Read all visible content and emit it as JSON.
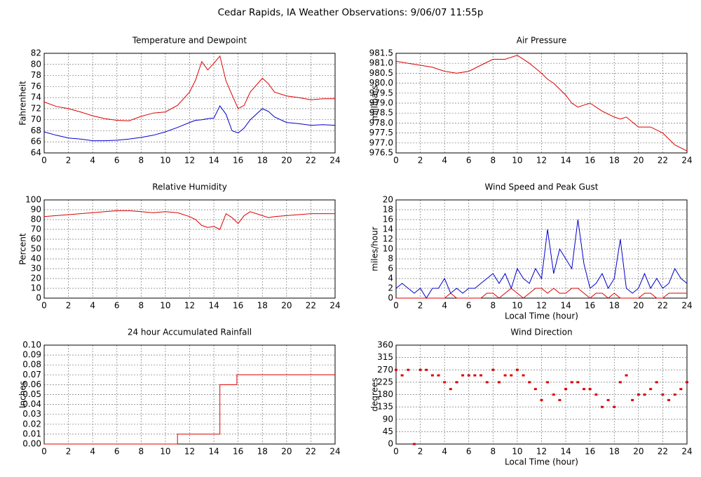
{
  "title": "Cedar Rapids, IA Weather Observations: 9/06/07 11:55p",
  "chart_data": [
    {
      "type": "line",
      "title": "Temperature and Dewpoint",
      "y_label": "Fahrenheit",
      "x": [
        0,
        1,
        2,
        3,
        4,
        5,
        6,
        7,
        8,
        9,
        10,
        11,
        12,
        12.5,
        13,
        13.5,
        14,
        14.5,
        15,
        15.5,
        16,
        16.5,
        17,
        18,
        18.5,
        19,
        20,
        21,
        22,
        23,
        24
      ],
      "series": [
        {
          "color": "#dd0000",
          "values": [
            73.2,
            72.4,
            72,
            71.4,
            70.7,
            70.2,
            69.9,
            69.8,
            70.6,
            71.2,
            71.4,
            72.6,
            75,
            77.2,
            80.5,
            79,
            80.2,
            81.5,
            77,
            74.5,
            72,
            72.6,
            75,
            77.5,
            76.5,
            75,
            74.3,
            74,
            73.6,
            73.8,
            73.8
          ]
        },
        {
          "color": "#0000cc",
          "values": [
            67.8,
            67.2,
            66.7,
            66.5,
            66.2,
            66.2,
            66.3,
            66.5,
            66.8,
            67.2,
            67.8,
            68.6,
            69.5,
            69.9,
            70,
            70.2,
            70.3,
            72.5,
            71,
            68,
            67.6,
            68.5,
            70,
            72,
            71.5,
            70.5,
            69.5,
            69.3,
            69,
            69.1,
            69
          ]
        }
      ],
      "xlim": [
        0,
        24
      ],
      "xticks": [
        0,
        2,
        4,
        6,
        8,
        10,
        12,
        14,
        16,
        18,
        20,
        22,
        24
      ],
      "ylim": [
        64,
        82
      ],
      "yticks": [
        64,
        66,
        68,
        70,
        72,
        74,
        76,
        78,
        80,
        82
      ],
      "grid": true
    },
    {
      "type": "line",
      "title": "Air Pressure",
      "y_label": "millibars",
      "x": [
        0,
        1,
        2,
        3,
        4,
        5,
        6,
        7,
        8,
        9,
        10,
        11,
        12,
        12.5,
        13,
        13.5,
        14,
        14.5,
        15,
        15.5,
        16,
        16.5,
        17,
        18,
        18.5,
        19,
        20,
        21,
        22,
        23,
        24
      ],
      "series": [
        {
          "color": "#dd0000",
          "values": [
            981.1,
            981.0,
            980.9,
            980.8,
            980.6,
            980.5,
            980.6,
            980.9,
            981.2,
            981.2,
            981.4,
            981.0,
            980.5,
            980.2,
            980.0,
            979.7,
            979.4,
            979.0,
            978.8,
            978.9,
            979.0,
            978.8,
            978.6,
            978.3,
            978.2,
            978.3,
            977.8,
            977.8,
            977.5,
            976.9,
            976.6
          ]
        }
      ],
      "xlim": [
        0,
        24
      ],
      "xticks": [
        0,
        2,
        4,
        6,
        8,
        10,
        12,
        14,
        16,
        18,
        20,
        22,
        24
      ],
      "ylim": [
        976.5,
        981.5
      ],
      "yticks": [
        976.5,
        {
          "value": 977,
          "label": "977.0"
        },
        977.5,
        {
          "value": 978,
          "label": "978.0"
        },
        978.5,
        {
          "value": 979,
          "label": "979.0"
        },
        979.5,
        {
          "value": 980,
          "label": "980.0"
        },
        980.5,
        {
          "value": 981,
          "label": "981.0"
        },
        981.5
      ],
      "grid": true
    },
    {
      "type": "line",
      "title": "Relative Humidity",
      "y_label": "Percent",
      "x": [
        0,
        1,
        2,
        3,
        4,
        5,
        6,
        7,
        8,
        9,
        10,
        11,
        12,
        12.5,
        13,
        13.5,
        14,
        14.5,
        15,
        15.5,
        16,
        16.5,
        17,
        18,
        18.5,
        19,
        20,
        21,
        22,
        23,
        24
      ],
      "series": [
        {
          "color": "#dd0000",
          "values": [
            83,
            84,
            85,
            86,
            87,
            88,
            89,
            89,
            88,
            87,
            88,
            87,
            83,
            80,
            74,
            72,
            73,
            70,
            86,
            82,
            76,
            84,
            88,
            84,
            82,
            83,
            84,
            85,
            86,
            86,
            86
          ]
        }
      ],
      "xlim": [
        0,
        24
      ],
      "xticks": [
        0,
        2,
        4,
        6,
        8,
        10,
        12,
        14,
        16,
        18,
        20,
        22,
        24
      ],
      "ylim": [
        0,
        100
      ],
      "yticks": [
        0,
        10,
        20,
        30,
        40,
        50,
        60,
        70,
        80,
        90,
        100
      ],
      "grid": true
    },
    {
      "type": "line",
      "title": "Wind Speed and Peak Gust",
      "y_label": "miles/hour",
      "x_label": "Local Time (hour)",
      "x": [
        0,
        0.5,
        1,
        1.5,
        2,
        2.5,
        3,
        3.5,
        4,
        4.5,
        5,
        5.5,
        6,
        6.5,
        7,
        7.5,
        8,
        8.5,
        9,
        9.5,
        10,
        10.5,
        11,
        11.5,
        12,
        12.5,
        13,
        13.5,
        14,
        14.5,
        15,
        15.5,
        16,
        16.5,
        17,
        17.5,
        18,
        18.5,
        19,
        19.5,
        20,
        20.5,
        21,
        21.5,
        22,
        22.5,
        23,
        23.5,
        24
      ],
      "series": [
        {
          "color": "#0000cc",
          "values": [
            2,
            3,
            2,
            1,
            2,
            0,
            2,
            2,
            4,
            1,
            2,
            1,
            2,
            2,
            3,
            4,
            5,
            3,
            5,
            2,
            6,
            4,
            3,
            6,
            4,
            14,
            5,
            10,
            8,
            6,
            16,
            7,
            2,
            3,
            5,
            2,
            4,
            12,
            2,
            1,
            2,
            5,
            2,
            4,
            2,
            3,
            6,
            4,
            3
          ]
        },
        {
          "color": "#dd0000",
          "values": [
            0,
            0,
            0,
            0,
            0,
            0,
            0,
            0,
            0,
            1,
            0,
            0,
            0,
            0,
            0,
            1,
            1,
            0,
            1,
            2,
            1,
            0,
            1,
            2,
            2,
            1,
            2,
            1,
            1,
            2,
            2,
            1,
            0,
            1,
            1,
            0,
            1,
            0,
            0,
            0,
            0,
            1,
            1,
            0,
            0,
            1,
            1,
            1,
            1
          ]
        }
      ],
      "xlim": [
        0,
        24
      ],
      "xticks": [
        0,
        2,
        4,
        6,
        8,
        10,
        12,
        14,
        16,
        18,
        20,
        22,
        24
      ],
      "ylim": [
        0,
        20
      ],
      "yticks": [
        0,
        2,
        4,
        6,
        8,
        10,
        12,
        14,
        16,
        18,
        20
      ],
      "grid": true
    },
    {
      "type": "line",
      "title": "24 hour Accumulated Rainfall",
      "y_label": "Inches",
      "x": [
        0,
        11,
        11,
        14.5,
        14.5,
        15.9,
        15.9,
        24
      ],
      "series": [
        {
          "color": "#dd0000",
          "values": [
            0,
            0,
            0.01,
            0.01,
            0.06,
            0.06,
            0.07,
            0.07
          ]
        }
      ],
      "xlim": [
        0,
        24
      ],
      "xticks": [
        0,
        2,
        4,
        6,
        8,
        10,
        12,
        14,
        16,
        18,
        20,
        22,
        24
      ],
      "ylim": [
        0,
        0.1
      ],
      "yticks": [
        {
          "value": 0,
          "label": "0.00"
        },
        0.01,
        0.02,
        0.03,
        0.04,
        0.05,
        0.06,
        0.07,
        0.08,
        0.09,
        {
          "value": 0.1,
          "label": "0.10"
        }
      ],
      "grid": true
    },
    {
      "type": "scatter",
      "title": "Wind Direction",
      "y_label": "degrees",
      "x_label": "Local Time (hour)",
      "x": [
        0,
        0.5,
        1,
        1.5,
        2,
        2.5,
        3,
        3.5,
        4,
        4.5,
        5,
        5.5,
        6,
        6.5,
        7,
        7.5,
        8,
        8.5,
        9,
        9.5,
        10,
        10.5,
        11,
        11.5,
        12,
        12.5,
        13,
        13.5,
        14,
        14.5,
        15,
        15.5,
        16,
        16.5,
        17,
        17.5,
        18,
        18.5,
        19,
        19.5,
        20,
        20.5,
        21,
        21.5,
        22,
        22.5,
        23,
        23.5,
        24
      ],
      "series": [
        {
          "color": "#dd0000",
          "values": [
            270,
            250,
            270,
            0,
            270,
            270,
            250,
            250,
            225,
            200,
            225,
            250,
            250,
            250,
            250,
            225,
            270,
            225,
            250,
            250,
            270,
            250,
            225,
            200,
            160,
            225,
            180,
            160,
            200,
            225,
            225,
            200,
            200,
            180,
            135,
            160,
            135,
            225,
            250,
            160,
            180,
            180,
            200,
            225,
            180,
            160,
            180,
            200,
            225
          ]
        }
      ],
      "xlim": [
        0,
        24
      ],
      "xticks": [
        0,
        2,
        4,
        6,
        8,
        10,
        12,
        14,
        16,
        18,
        20,
        22,
        24
      ],
      "ylim": [
        0,
        360
      ],
      "yticks": [
        0,
        45,
        90,
        135,
        180,
        225,
        270,
        315,
        360
      ],
      "grid": true
    }
  ]
}
